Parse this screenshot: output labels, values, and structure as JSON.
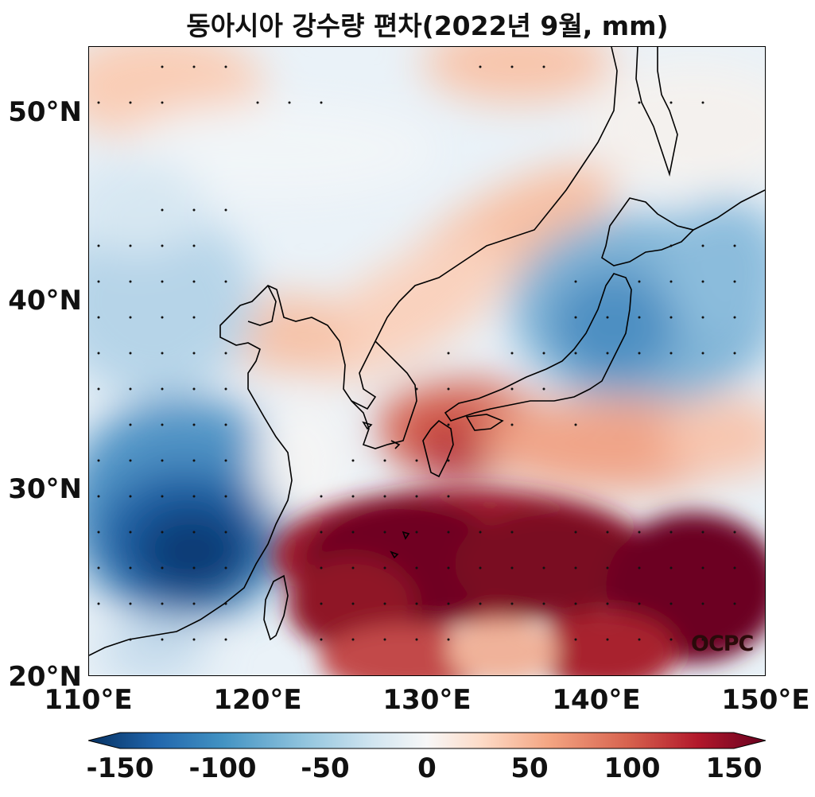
{
  "title": "동아시아 강수량 편차(2022년 9월, mm)",
  "watermark": "OCPC",
  "map": {
    "extent": {
      "lon_min": 110,
      "lon_max": 150,
      "lat_min": 20,
      "lat_max": 53.5
    },
    "colormap": "RdBu_r",
    "stippling": true,
    "coastlines": true
  },
  "axes": {
    "x_ticks": [
      "110°E",
      "120°E",
      "130°E",
      "140°E",
      "150°E"
    ],
    "y_ticks": [
      "20°N",
      "30°N",
      "40°N",
      "50°N"
    ]
  },
  "colorbar": {
    "min": -150,
    "max": 150,
    "labels": [
      "-150",
      "-100",
      "-50",
      "0",
      "50",
      "100",
      "150"
    ],
    "colors": [
      "#053061",
      "#2166ac",
      "#4393c3",
      "#92c5de",
      "#d1e5f0",
      "#f7f7f7",
      "#fddbc7",
      "#f4a582",
      "#d6604d",
      "#b2182b",
      "#67001f"
    ]
  }
}
